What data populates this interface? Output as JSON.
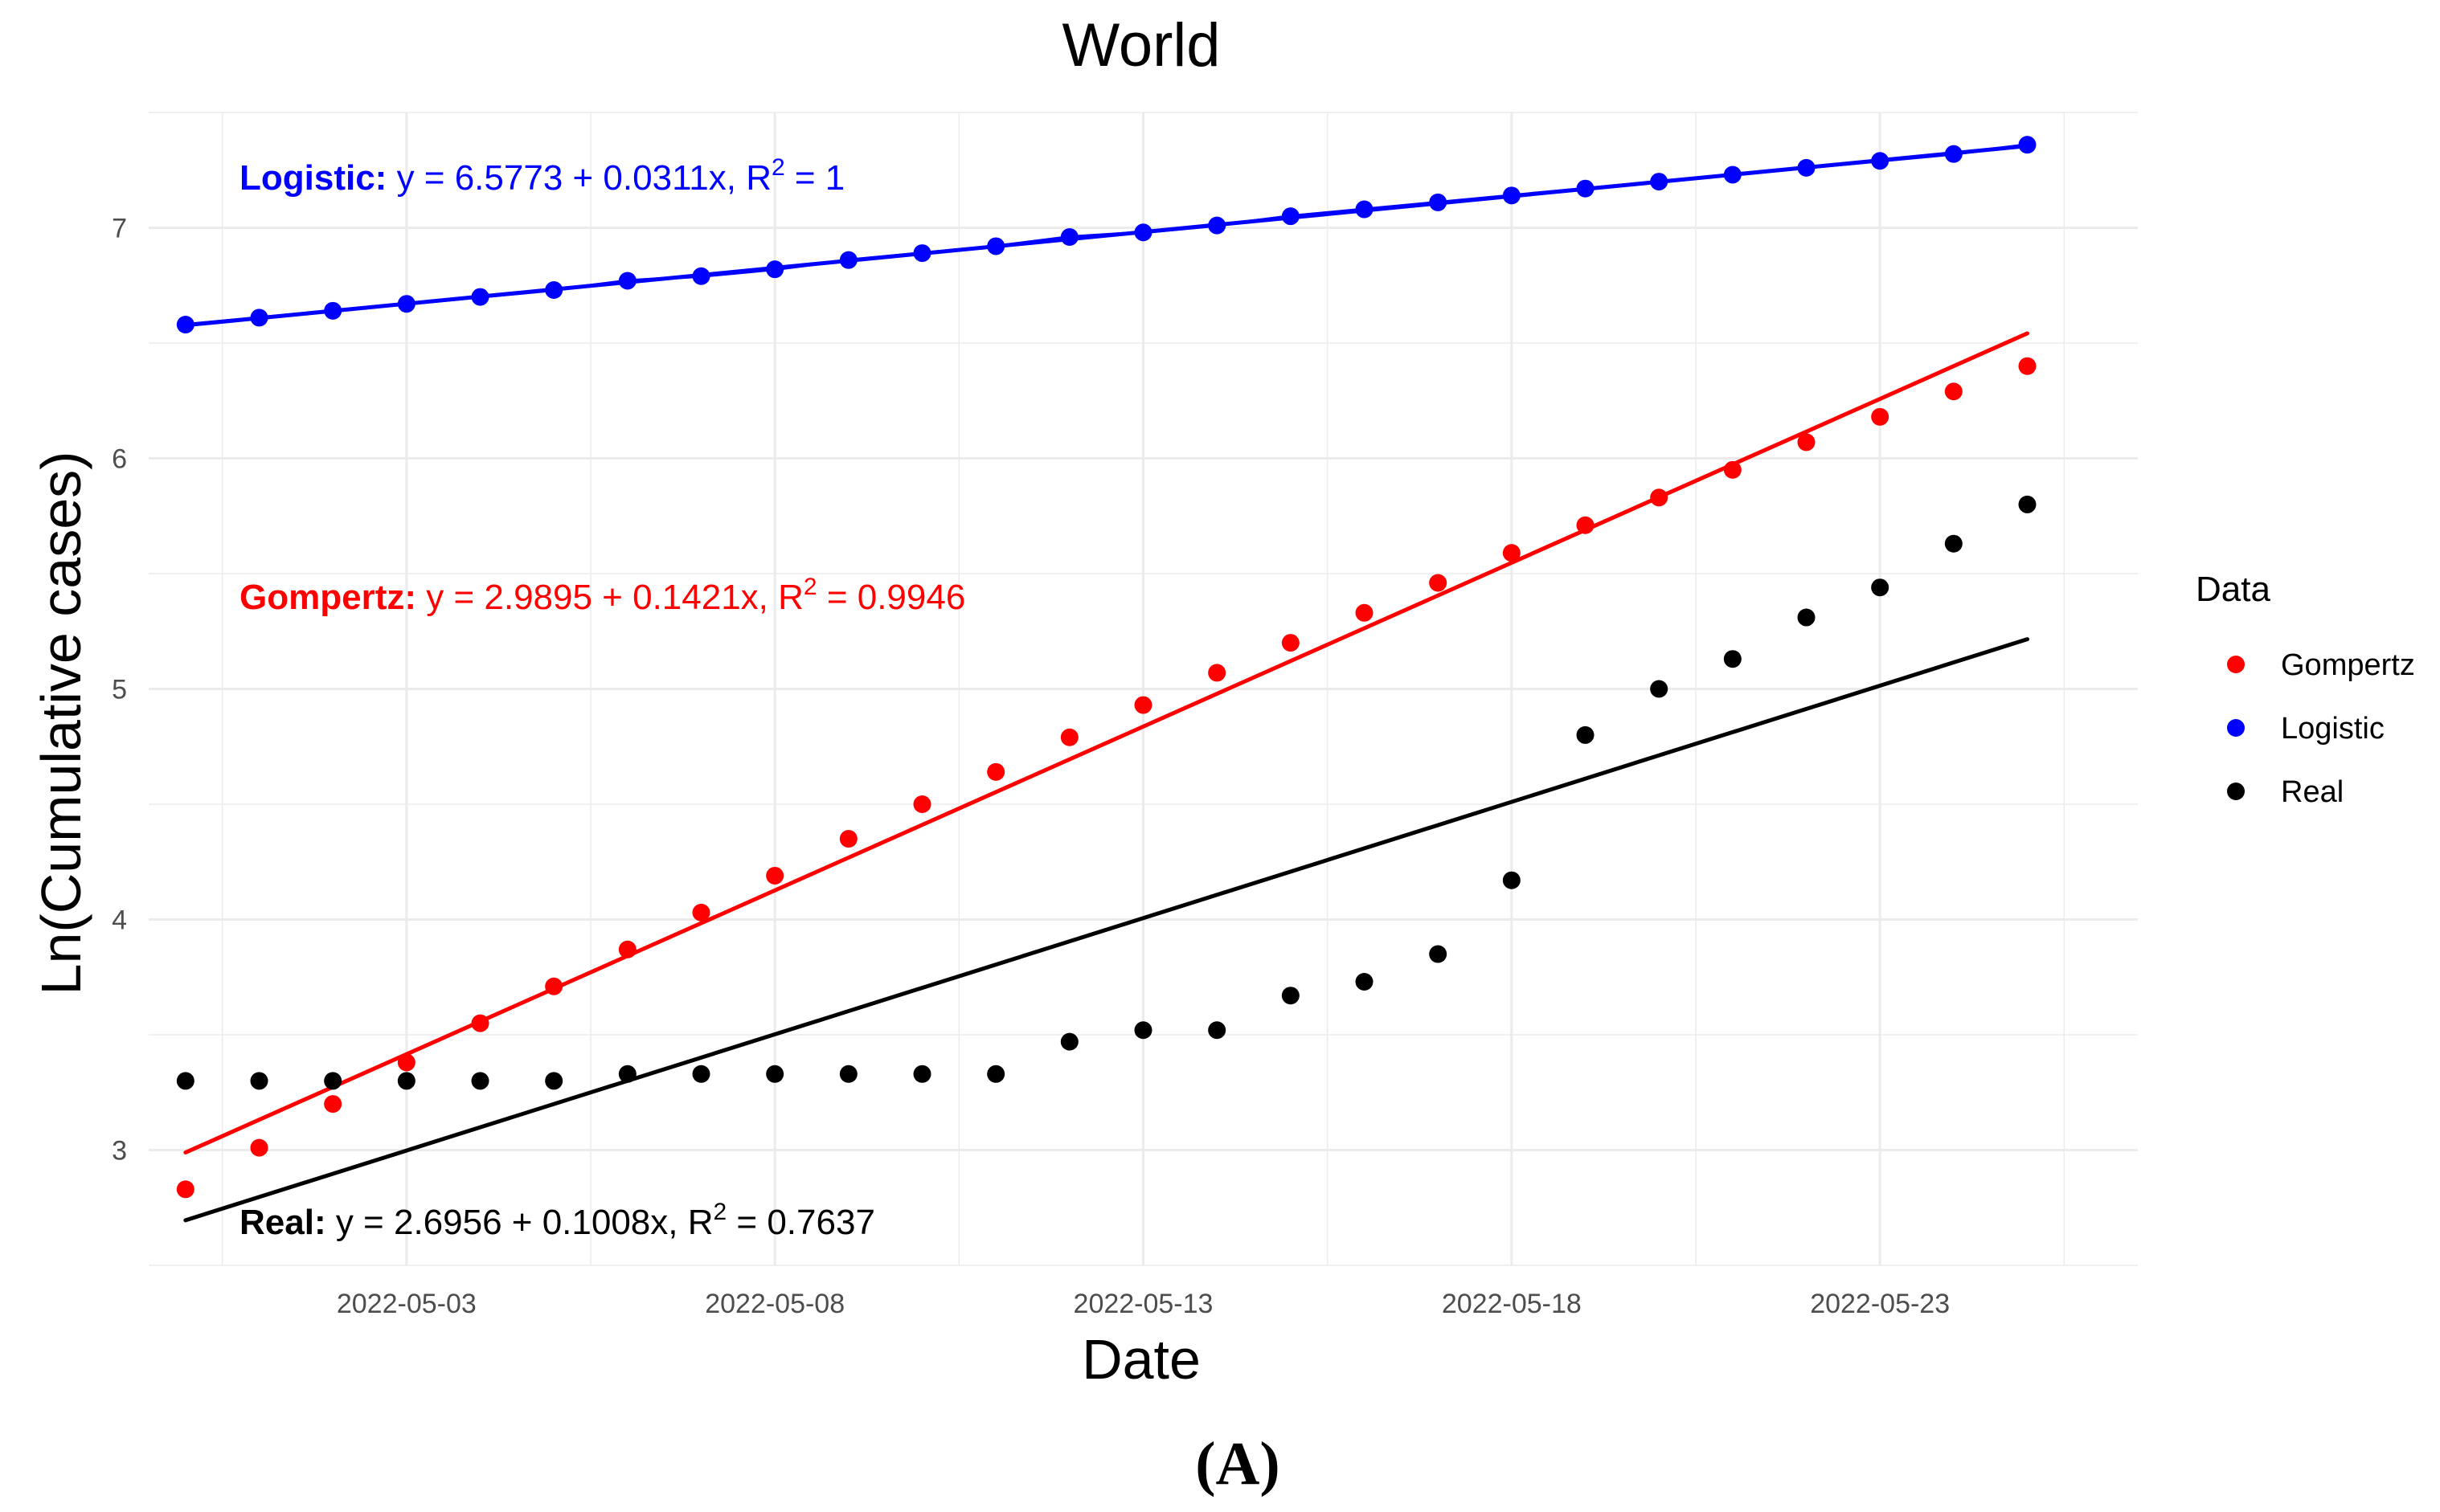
{
  "chart_data": {
    "type": "scatter",
    "title": "World",
    "xlabel": "Date",
    "ylabel": "Ln(Cumulative cases)",
    "panel_label": "(A)",
    "x_start": "2022-04-30",
    "x_end": "2022-05-26",
    "xlim": [
      -0.5,
      26.5
    ],
    "ylim": [
      2.5,
      7.5
    ],
    "x_ticks": [
      {
        "index": 3,
        "label": "2022-05-03"
      },
      {
        "index": 8,
        "label": "2022-05-08"
      },
      {
        "index": 13,
        "label": "2022-05-13"
      },
      {
        "index": 18,
        "label": "2022-05-18"
      },
      {
        "index": 23,
        "label": "2022-05-23"
      }
    ],
    "y_ticks": [
      3,
      4,
      5,
      6,
      7
    ],
    "grid": true,
    "legend": {
      "title": "Data",
      "position": "right",
      "entries": [
        {
          "label": "Gompertz",
          "color": "#ff0000"
        },
        {
          "label": "Logistic",
          "color": "#0000ff"
        },
        {
          "label": "Real",
          "color": "#000000"
        }
      ]
    },
    "series": [
      {
        "name": "Logistic",
        "color": "#0000ff",
        "connected": true,
        "values": [
          6.58,
          6.61,
          6.64,
          6.67,
          6.7,
          6.73,
          6.77,
          6.79,
          6.82,
          6.86,
          6.89,
          6.92,
          6.96,
          6.98,
          7.01,
          7.05,
          7.08,
          7.11,
          7.14,
          7.17,
          7.2,
          7.23,
          7.26,
          7.29,
          7.32,
          7.36
        ],
        "fit": {
          "intercept": 6.5773,
          "slope": 0.0311
        },
        "equation": {
          "name": "Logistic:",
          "text": "y = 6.5773 + 0.0311x,  R",
          "r2_sup": "2",
          "r2_value": " = 1"
        }
      },
      {
        "name": "Gompertz",
        "color": "#ff0000",
        "connected": false,
        "values": [
          2.83,
          3.01,
          3.2,
          3.38,
          3.55,
          3.71,
          3.87,
          4.03,
          4.19,
          4.35,
          4.5,
          4.64,
          4.79,
          4.93,
          5.07,
          5.2,
          5.33,
          5.46,
          5.59,
          5.71,
          5.83,
          5.95,
          6.07,
          6.18,
          6.29,
          6.4
        ],
        "fit": {
          "intercept": 2.9895,
          "slope": 0.1421
        },
        "equation": {
          "name": "Gompertz:",
          "text": "y = 2.9895 + 0.1421x,  R",
          "r2_sup": "2",
          "r2_value": " = 0.9946"
        }
      },
      {
        "name": "Real",
        "color": "#000000",
        "connected": false,
        "values": [
          3.3,
          3.3,
          3.3,
          3.3,
          3.3,
          3.3,
          3.33,
          3.33,
          3.33,
          3.33,
          3.33,
          3.33,
          3.47,
          3.52,
          3.52,
          3.67,
          3.73,
          3.85,
          4.17,
          4.8,
          5.0,
          5.13,
          5.31,
          5.44,
          5.63,
          5.8
        ],
        "fit": {
          "intercept": 2.6956,
          "slope": 0.1008
        },
        "equation": {
          "name": "Real:",
          "text": "y = 2.6956 + 0.1008x,  R",
          "r2_sup": "2",
          "r2_value": " = 0.7637"
        }
      }
    ]
  }
}
